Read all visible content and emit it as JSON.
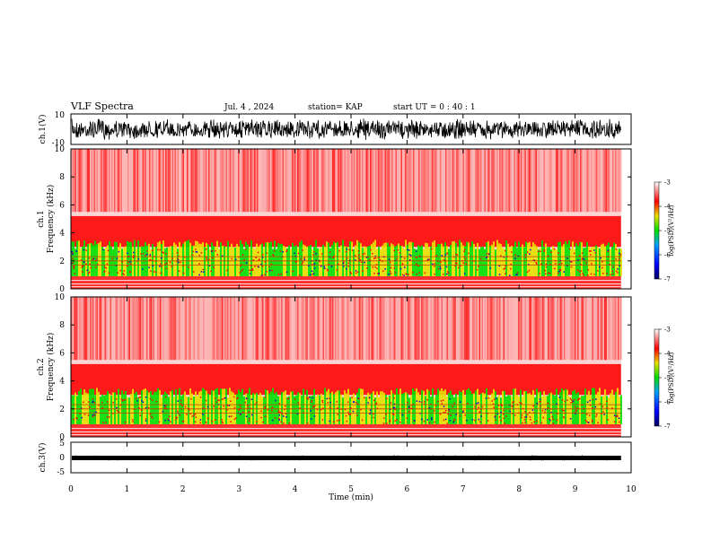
{
  "header": {
    "title": "VLF Spectra",
    "date": "Jul. 4 , 2024",
    "station": "station= KAP",
    "start": "start UT = 0 : 40 : 1"
  },
  "colors": {
    "spec_low": "#0000d0",
    "spec_mid": "#00e000",
    "spec_yellow": "#e8e000",
    "spec_high": "#ff0000",
    "waveform": "#000000"
  },
  "chart_data": [
    {
      "type": "line",
      "name": "waveform-ch1",
      "ylabel": "ch.1(V)",
      "ylim": [
        -10,
        10
      ],
      "yticks": [
        "10",
        "-10"
      ],
      "xlim": [
        0,
        10
      ]
    },
    {
      "type": "heatmap",
      "name": "spectrogram-ch1",
      "ylabel": "ch.1",
      "ylabel2": "Frequency (kHz)",
      "ylim": [
        0,
        10
      ],
      "yticks": [
        "0",
        "2",
        "4",
        "6",
        "8",
        "10"
      ],
      "xlim": [
        0,
        10
      ],
      "colorbar": {
        "label": "log(PSD)(V²/Hz)",
        "range": [
          -7,
          -3
        ],
        "ticks": [
          "-3",
          "-4",
          "-5",
          "-6",
          "-7"
        ]
      }
    },
    {
      "type": "heatmap",
      "name": "spectrogram-ch2",
      "ylabel": "ch.2",
      "ylabel2": "Frequency (kHz)",
      "ylim": [
        0,
        10
      ],
      "yticks": [
        "0",
        "2",
        "4",
        "6",
        "8",
        "10"
      ],
      "xlim": [
        0,
        10
      ],
      "colorbar": {
        "label": "log(PSD)(V²/Hz)",
        "range": [
          -7,
          -3
        ],
        "ticks": [
          "-3",
          "-4",
          "-5",
          "-6",
          "-7"
        ]
      }
    },
    {
      "type": "line",
      "name": "waveform-ch3",
      "ylabel": "ch.3(V)",
      "ylim": [
        -5,
        5
      ],
      "yticks": [
        "5",
        "0",
        "-5"
      ],
      "xlim": [
        0,
        10
      ]
    }
  ],
  "xaxis": {
    "label": "Time (min)",
    "ticks": [
      "0",
      "1",
      "2",
      "3",
      "4",
      "5",
      "6",
      "7",
      "8",
      "9",
      "10"
    ],
    "data_end": 9.82
  }
}
